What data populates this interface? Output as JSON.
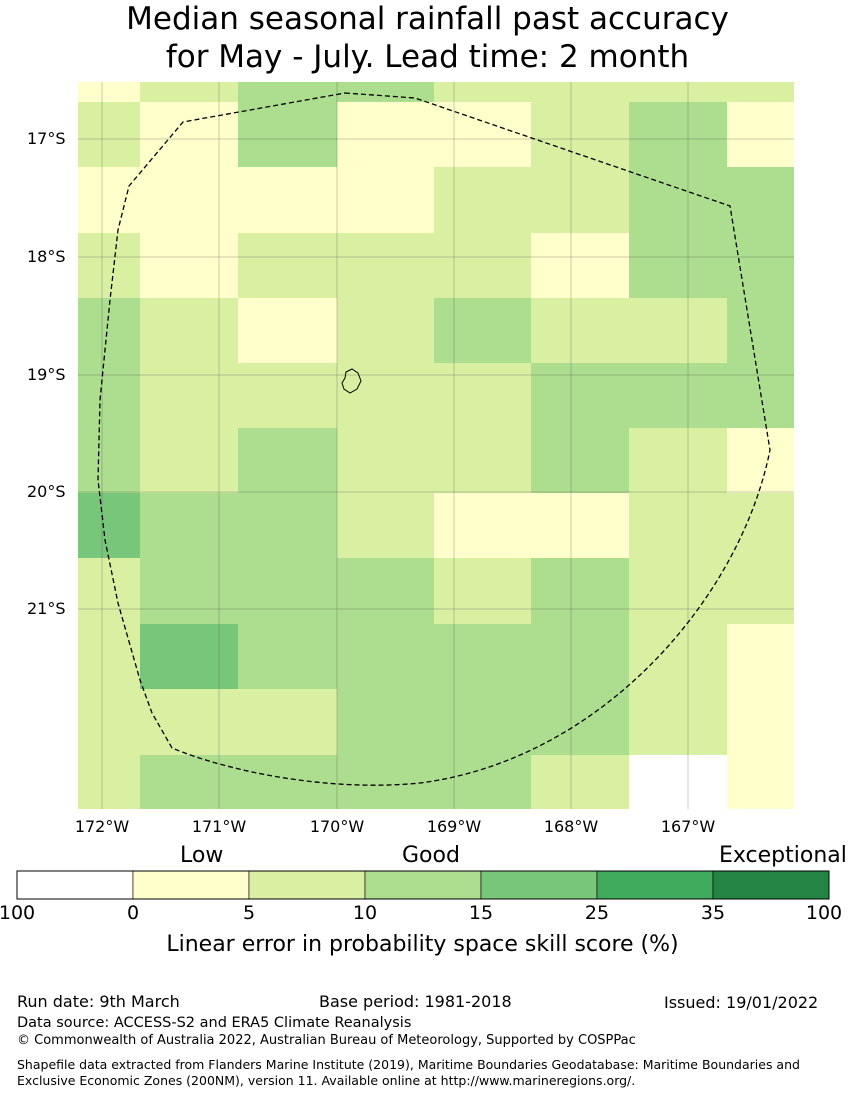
{
  "title": {
    "line1": "Median seasonal rainfall past accuracy",
    "line2": "for May - July. Lead time: 2 month"
  },
  "map": {
    "lat_labels": [
      "17°S",
      "18°S",
      "19°S",
      "20°S",
      "21°S"
    ],
    "lon_labels": [
      "172°W",
      "171°W",
      "170°W",
      "169°W",
      "168°W",
      "167°W"
    ],
    "grid": [
      [
        "y",
        "l",
        "m",
        "m",
        "l",
        "l",
        "l",
        "l"
      ],
      [
        "l",
        "y",
        "m",
        "y",
        "y",
        "l",
        "m",
        "y"
      ],
      [
        "y",
        "y",
        "y",
        "y",
        "l",
        "l",
        "m",
        "m"
      ],
      [
        "l",
        "y",
        "l",
        "l",
        "l",
        "y",
        "m",
        "m"
      ],
      [
        "m",
        "l",
        "y",
        "l",
        "m",
        "l",
        "l",
        "m"
      ],
      [
        "m",
        "l",
        "l",
        "l",
        "l",
        "m",
        "m",
        "m"
      ],
      [
        "m",
        "l",
        "m",
        "l",
        "l",
        "m",
        "l",
        "y"
      ],
      [
        "g",
        "m",
        "m",
        "l",
        "y",
        "y",
        "l",
        "l"
      ],
      [
        "l",
        "m",
        "m",
        "m",
        "l",
        "m",
        "l",
        "l"
      ],
      [
        "l",
        "g",
        "m",
        "m",
        "m",
        "m",
        "l",
        "y"
      ],
      [
        "l",
        "l",
        "l",
        "m",
        "m",
        "m",
        "l",
        "y"
      ],
      [
        "l",
        "m",
        "m",
        "m",
        "m",
        "l",
        "w",
        "y"
      ]
    ],
    "palette": {
      "w": "#ffffff",
      "y": "#ffffcc",
      "l": "#d9f0a3",
      "m": "#addd8e",
      "g": "#78c679",
      "d": "#41ab5d",
      "e": "#238443"
    }
  },
  "legend": {
    "categories": [
      "Low",
      "Good",
      "Exceptional"
    ],
    "ticks": [
      "100",
      "0",
      "5",
      "10",
      "15",
      "25",
      "35",
      "100"
    ],
    "colors": [
      "#ffffff",
      "#ffffcc",
      "#d9f0a3",
      "#addd8e",
      "#78c679",
      "#41ab5d",
      "#238443"
    ],
    "label": "Linear error in probability space skill score (%)"
  },
  "footer": {
    "run_date": "Run date: 9th March",
    "base_period": "Base period: 1981-2018",
    "issued": "Issued: 19/01/2022",
    "data_source": "Data source: ACCESS-S2 and ERA5 Climate Reanalysis",
    "copyright": "© Commonwealth of Australia 2022, Australian Bureau of Meteorology, Supported by COSPPac",
    "shapefile": "Shapefile data extracted from Flanders Marine Institute (2019), Maritime Boundaries Geodatabase: Maritime Boundaries and Exclusive Economic Zones (200NM), version 11. Available online at http://www.marineregions.org/."
  }
}
